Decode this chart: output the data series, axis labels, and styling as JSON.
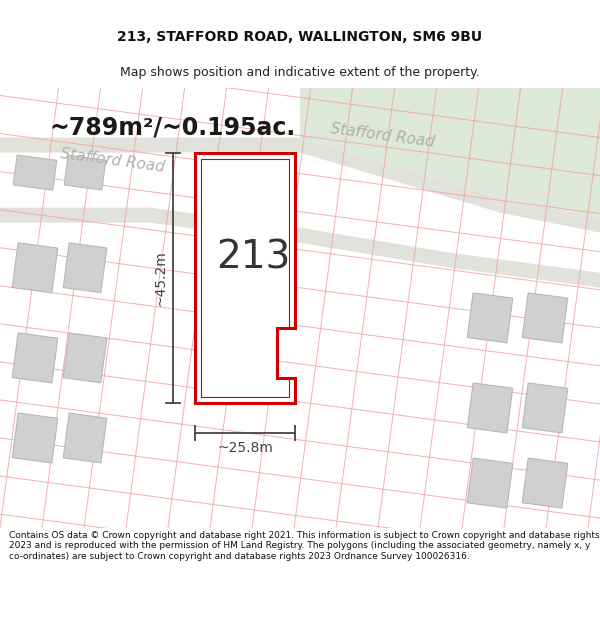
{
  "title": "213, STAFFORD ROAD, WALLINGTON, SM6 9BU",
  "subtitle": "Map shows position and indicative extent of the property.",
  "footer": "Contains OS data © Crown copyright and database right 2021. This information is subject to Crown copyright and database rights 2023 and is reproduced with the permission of HM Land Registry. The polygons (including the associated geometry, namely x, y co-ordinates) are subject to Crown copyright and database rights 2023 Ordnance Survey 100026316.",
  "area_label": "~789m²/~0.195ac.",
  "number_label": "213",
  "dim_height": "~45.2m",
  "dim_width": "~25.8m",
  "road_label_1": "Stafford Road",
  "road_label_2": "Stafford Road",
  "map_bg": "#f5f5f2",
  "green_bg": "#dde8d8",
  "road_band_color": "#e2e2dc",
  "plot_fill": "#ffffff",
  "plot_border": "#cc0000",
  "grid_color": "#f0a8a8",
  "building_fill": "#d0d0d0",
  "building_edge": "#b8b8b8",
  "dim_color": "#444444",
  "road_text_color": "#b0b0b0",
  "area_text_color": "#1a1a1a",
  "header_title_size": 10,
  "header_sub_size": 9,
  "footer_size": 6.5
}
